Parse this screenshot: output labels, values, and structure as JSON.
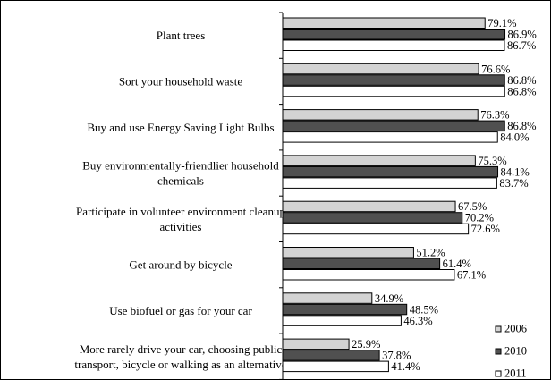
{
  "chart_data": {
    "type": "bar",
    "orientation": "horizontal",
    "categories": [
      [
        "Plant trees"
      ],
      [
        "Sort your household waste"
      ],
      [
        "Buy and use Energy Saving Light Bulbs"
      ],
      [
        "Buy environmentally-friendlier household",
        "chemicals"
      ],
      [
        "Participate in volunteer environment cleanup",
        "activities"
      ],
      [
        "Get around by bicycle"
      ],
      [
        "Use biofuel or gas for your car"
      ],
      [
        "More rarely drive your car, choosing public",
        "transport, bicycle or walking as an alternative"
      ]
    ],
    "series": [
      {
        "name": "2006",
        "color": "#d3d3d3",
        "values": [
          79.1,
          76.6,
          76.3,
          75.3,
          67.5,
          51.2,
          34.9,
          25.9
        ]
      },
      {
        "name": "2010",
        "color": "#505050",
        "values": [
          86.9,
          86.8,
          86.8,
          84.1,
          70.2,
          61.4,
          48.5,
          37.8
        ]
      },
      {
        "name": "2011",
        "color": "#ffffff",
        "values": [
          86.7,
          86.8,
          84.0,
          83.7,
          72.6,
          67.1,
          46.3,
          41.4
        ]
      }
    ],
    "value_suffix": "%",
    "xlim": [
      0,
      100
    ],
    "legend": "bottom-right",
    "grid": false
  }
}
